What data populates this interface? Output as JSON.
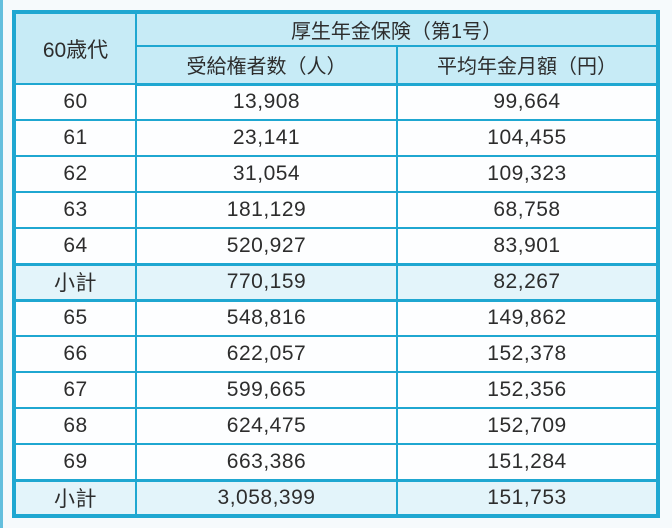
{
  "page": {
    "background_color": "#f6fafc",
    "border_color": "#1fa7d1",
    "header_bg_color": "#c7ebf6",
    "subtotal_bg_color": "#e3f4fa",
    "row_bg_color": "#fdfeff",
    "text_color": "#2d2d2d"
  },
  "table": {
    "corner_header": "60歳代",
    "group_header": "厚生年金保険（第1号）",
    "col_headers": [
      "受給権者数（人）",
      "平均年金月額（円）"
    ],
    "rows": [
      {
        "type": "data",
        "label": "60",
        "recipients": "13,908",
        "avg_monthly": "99,664"
      },
      {
        "type": "data",
        "label": "61",
        "recipients": "23,141",
        "avg_monthly": "104,455"
      },
      {
        "type": "data",
        "label": "62",
        "recipients": "31,054",
        "avg_monthly": "109,323"
      },
      {
        "type": "data",
        "label": "63",
        "recipients": "181,129",
        "avg_monthly": "68,758"
      },
      {
        "type": "data",
        "label": "64",
        "recipients": "520,927",
        "avg_monthly": "83,901"
      },
      {
        "type": "subtotal",
        "label": "小計",
        "recipients": "770,159",
        "avg_monthly": "82,267"
      },
      {
        "type": "data",
        "label": "65",
        "recipients": "548,816",
        "avg_monthly": "149,862"
      },
      {
        "type": "data",
        "label": "66",
        "recipients": "622,057",
        "avg_monthly": "152,378"
      },
      {
        "type": "data",
        "label": "67",
        "recipients": "599,665",
        "avg_monthly": "152,356"
      },
      {
        "type": "data",
        "label": "68",
        "recipients": "624,475",
        "avg_monthly": "152,709"
      },
      {
        "type": "data",
        "label": "69",
        "recipients": "663,386",
        "avg_monthly": "151,284"
      },
      {
        "type": "subtotal",
        "label": "小計",
        "recipients": "3,058,399",
        "avg_monthly": "151,753"
      }
    ]
  }
}
